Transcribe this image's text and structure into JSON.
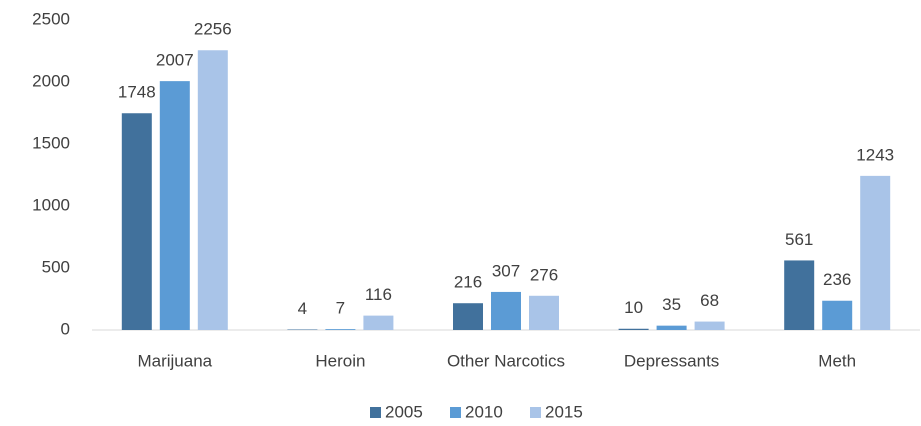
{
  "chart_data": {
    "type": "bar",
    "categories": [
      "Marijuana",
      "Heroin",
      "Other Narcotics",
      "Depressants",
      "Meth"
    ],
    "series": [
      {
        "name": "2005",
        "color": "#41719c",
        "values": [
          1748,
          4,
          216,
          10,
          561
        ]
      },
      {
        "name": "2010",
        "color": "#5b9bd5",
        "values": [
          2007,
          7,
          307,
          35,
          236
        ]
      },
      {
        "name": "2015",
        "color": "#a9c4e8",
        "values": [
          2256,
          116,
          276,
          68,
          1243
        ]
      }
    ],
    "ylim": [
      0,
      2500
    ],
    "yticks": [
      0,
      500,
      1000,
      1500,
      2000,
      2500
    ],
    "grid": false,
    "legend": "bottom"
  }
}
